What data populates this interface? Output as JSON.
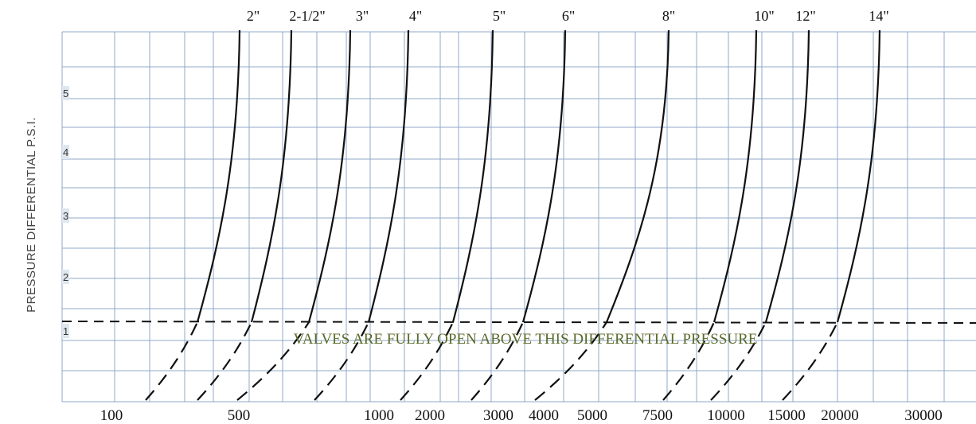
{
  "chart_data": {
    "type": "line",
    "ylabel": "PRESSURE DIFFERENTIAL P.S.I.",
    "xlabel": "",
    "y_ticks": [
      "5",
      "4",
      "3",
      "2",
      "1"
    ],
    "x_ticks": [
      "100",
      "500",
      "1000",
      "2000",
      "3000",
      "4000",
      "5000",
      "7500",
      "10000",
      "15000",
      "20000",
      "30000"
    ],
    "series_labels": [
      "2\"",
      "2-1/2\"",
      "3\"",
      "4\"",
      "5\"",
      "6\"",
      "8\"",
      "10\"",
      "12\"",
      "14\""
    ],
    "threshold": {
      "y": 1.3,
      "label": "VALVES ARE FULLY OPEN ABOVE THIS DIFFERENTIAL PRESSURE"
    },
    "ylim": [
      0,
      6
    ],
    "grid": true
  },
  "colors": {
    "grid": "#8fa8c8",
    "curve": "#111111",
    "note": "#5a6a2a",
    "tick_bg": "#dfe7ee"
  }
}
